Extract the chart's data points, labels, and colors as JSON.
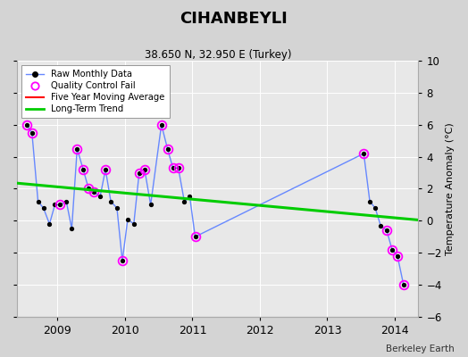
{
  "title": "CIHANBEYLI",
  "subtitle": "38.650 N, 32.950 E (Turkey)",
  "attribution": "Berkeley Earth",
  "ylabel": "Temperature Anomaly (°C)",
  "ylim": [
    -6,
    10
  ],
  "yticks": [
    -6,
    -4,
    -2,
    0,
    2,
    4,
    6,
    8,
    10
  ],
  "xlim": [
    2008.4,
    2014.35
  ],
  "xticks": [
    2009,
    2010,
    2011,
    2012,
    2013,
    2014
  ],
  "background_color": "#d4d4d4",
  "plot_background": "#e8e8e8",
  "raw_monthly_x": [
    2008.54,
    2008.62,
    2008.71,
    2008.79,
    2008.88,
    2008.96,
    2009.04,
    2009.13,
    2009.21,
    2009.29,
    2009.38,
    2009.46,
    2009.54,
    2009.63,
    2009.71,
    2009.79,
    2009.88,
    2009.96,
    2010.04,
    2010.13,
    2010.21,
    2010.29,
    2010.38,
    2010.54,
    2010.63,
    2010.71,
    2010.79,
    2010.88,
    2010.96,
    2011.04,
    2013.54,
    2013.63,
    2013.71,
    2013.79,
    2013.88,
    2013.96,
    2014.04,
    2014.13
  ],
  "raw_monthly_y": [
    6.0,
    5.5,
    1.2,
    0.8,
    -0.2,
    1.0,
    1.0,
    1.2,
    -0.5,
    4.5,
    3.2,
    2.0,
    1.8,
    1.5,
    3.2,
    1.2,
    0.8,
    -2.5,
    0.1,
    -0.2,
    3.0,
    3.2,
    1.0,
    6.0,
    4.5,
    3.3,
    3.3,
    1.2,
    1.5,
    -1.0,
    4.2,
    1.2,
    0.8,
    -0.3,
    -0.6,
    -1.8,
    -2.2,
    -4.0
  ],
  "qc_fail_x": [
    2008.54,
    2008.62,
    2009.04,
    2009.29,
    2009.38,
    2009.46,
    2009.54,
    2009.71,
    2009.96,
    2010.21,
    2010.29,
    2010.54,
    2010.63,
    2010.71,
    2010.79,
    2011.04,
    2013.54,
    2013.88,
    2013.96,
    2014.04,
    2014.13
  ],
  "qc_fail_y": [
    6.0,
    5.5,
    1.0,
    4.5,
    3.2,
    2.0,
    1.8,
    3.2,
    -2.5,
    3.0,
    3.2,
    6.0,
    4.5,
    3.3,
    3.3,
    -1.0,
    4.2,
    -0.6,
    -1.8,
    -2.2,
    -4.0
  ],
  "long_term_trend_x": [
    2008.4,
    2014.35
  ],
  "long_term_trend_y": [
    2.35,
    0.05
  ],
  "trend_color": "#00cc00",
  "raw_line_color": "#6688ff",
  "raw_marker_color": "#000000",
  "qc_marker_color": "#ff00ff",
  "moving_avg_color": "#ff0000",
  "grid_color": "#ffffff",
  "spine_color": "#aaaaaa"
}
